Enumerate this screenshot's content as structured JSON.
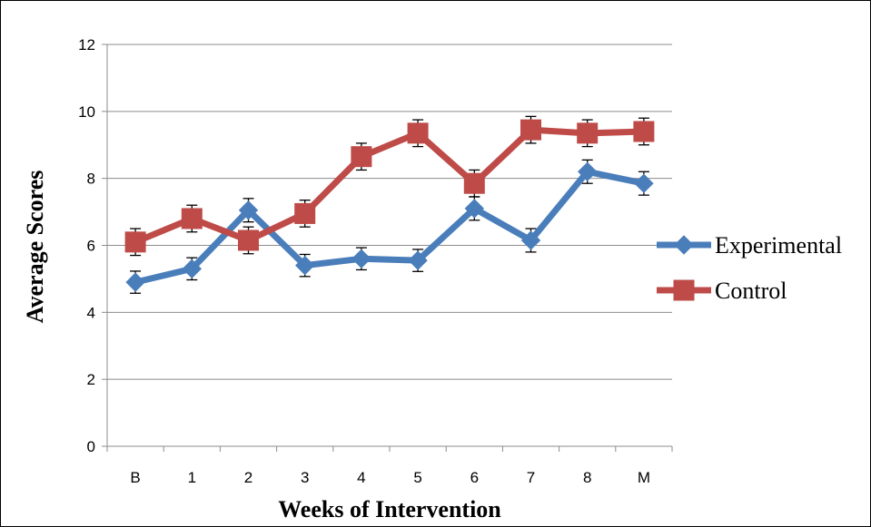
{
  "chart_data": {
    "type": "line",
    "xlabel": "Weeks of Intervention",
    "ylabel": "Average Scores",
    "categories": [
      "B",
      "1",
      "2",
      "3",
      "4",
      "5",
      "6",
      "7",
      "8",
      "M"
    ],
    "ylim": [
      0,
      12
    ],
    "yticks": [
      "0",
      "2",
      "4",
      "6",
      "8",
      "10",
      "12"
    ],
    "grid": "horizontal",
    "legend_position": "right",
    "series": [
      {
        "name": "Experimental",
        "color": "#4a7ebb",
        "marker": "diamond",
        "values": [
          4.9,
          5.3,
          7.05,
          5.4,
          5.6,
          5.55,
          7.1,
          6.15,
          8.2,
          7.85
        ],
        "error": [
          0.33,
          0.33,
          0.35,
          0.33,
          0.33,
          0.33,
          0.35,
          0.35,
          0.35,
          0.35
        ]
      },
      {
        "name": "Control",
        "color": "#be4b48",
        "marker": "square",
        "values": [
          6.1,
          6.8,
          6.15,
          6.95,
          8.65,
          9.35,
          7.85,
          9.45,
          9.35,
          9.4
        ],
        "error": [
          0.4,
          0.4,
          0.4,
          0.4,
          0.4,
          0.4,
          0.4,
          0.4,
          0.4,
          0.4
        ]
      }
    ]
  }
}
